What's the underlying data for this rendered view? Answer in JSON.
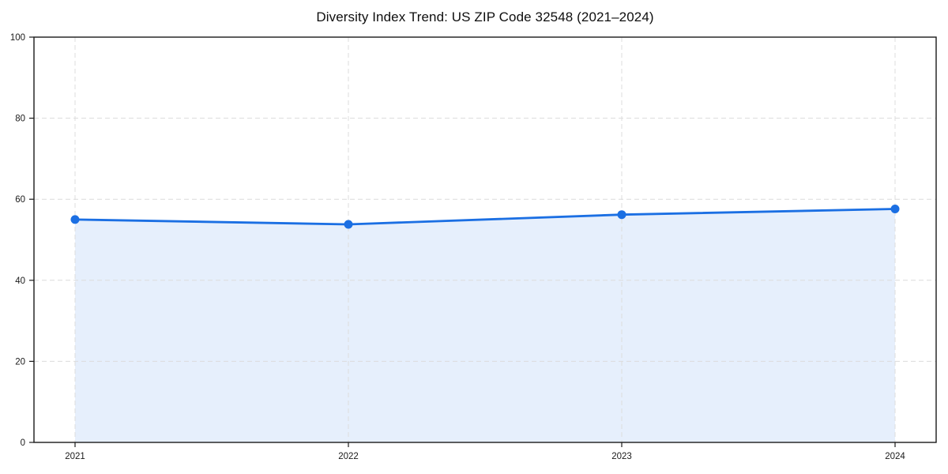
{
  "figure": {
    "background": "#ffffff"
  },
  "chart_data": {
    "type": "line",
    "title": "Diversity Index Trend: US ZIP Code 32548 (2021–2024)",
    "x": [
      "2021",
      "2022",
      "2023",
      "2024"
    ],
    "series": [
      {
        "name": "Diversity Index",
        "values": [
          55.0,
          53.8,
          56.2,
          57.6
        ],
        "line_color": "#1b6fe3",
        "marker": "circle",
        "area_fill": true,
        "area_fill_color": "rgba(27, 111, 227, 0.11)"
      }
    ],
    "xlabel": "",
    "ylabel": "",
    "ylim": [
      0,
      100
    ],
    "yticks": [
      0,
      20,
      40,
      60,
      80,
      100
    ],
    "grid": "dashed",
    "grid_color": "#dcdcdc",
    "axis_color": "#1a1a1a",
    "tick_label_color": "#1a1a1a",
    "legend": "none"
  }
}
